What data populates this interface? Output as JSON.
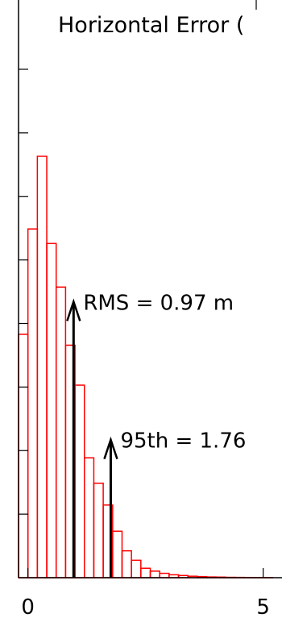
{
  "chart_data": {
    "type": "bar",
    "title": "Horizontal Error (",
    "xlabel": "",
    "ylabel": "",
    "x_tick_labels": [
      "0",
      "5"
    ],
    "x_ticks": [
      0,
      5
    ],
    "xlim": [
      -0.2,
      5.4
    ],
    "ylim": [
      0,
      0.58
    ],
    "bin_width": 0.2,
    "bin_starts": [
      -0.2,
      0.0,
      0.2,
      0.4,
      0.6,
      0.8,
      1.0,
      1.2,
      1.4,
      1.6,
      1.8,
      2.0,
      2.2,
      2.4,
      2.6,
      2.8,
      3.0,
      3.2,
      3.4,
      3.6,
      3.8,
      4.0,
      4.2,
      4.4,
      4.6,
      4.8,
      5.0
    ],
    "values": [
      0.335,
      0.48,
      0.58,
      0.46,
      0.4,
      0.32,
      0.265,
      0.165,
      0.13,
      0.1,
      0.064,
      0.037,
      0.024,
      0.013,
      0.009,
      0.006,
      0.004,
      0.003,
      0.002,
      0.0015,
      0.001,
      0.0008,
      0.0005,
      0.0004,
      0.0003,
      0.0002,
      0.0001
    ],
    "bar_color": "#ff0000",
    "annotations": [
      {
        "label": "RMS = 0.97 m",
        "x": 0.97,
        "y": 0.38
      },
      {
        "label": "95th = 1.76",
        "x": 1.76,
        "y": 0.19
      }
    ],
    "grid": false,
    "legend": "none"
  }
}
